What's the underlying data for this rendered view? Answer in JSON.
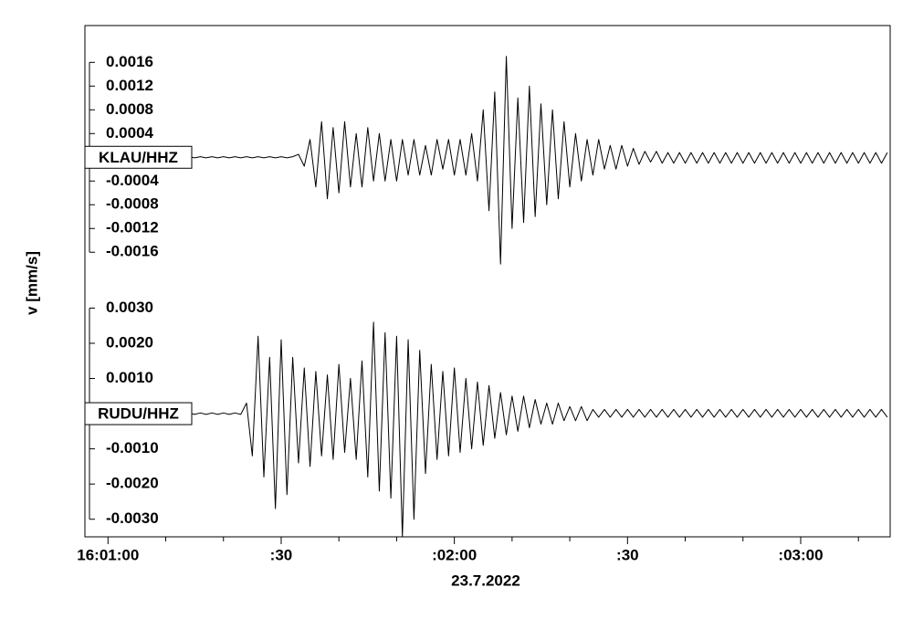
{
  "chart_data": [
    {
      "type": "line",
      "ylabel": "v [mm/s]",
      "xlim": [
        57656,
        57795.5
      ],
      "ylim": [
        -0.00215,
        0.00222
      ],
      "yticks": [
        0.0016,
        0.0012,
        0.0008,
        0.0004,
        -0.0004,
        -0.0008,
        -0.0012,
        -0.0016
      ],
      "x": [
        57656,
        57657,
        57658,
        57659,
        57660,
        57661,
        57662,
        57663,
        57664,
        57665,
        57666,
        57667,
        57668,
        57669,
        57670,
        57671,
        57672,
        57673,
        57674,
        57675,
        57676,
        57677,
        57678,
        57679,
        57680,
        57681,
        57682,
        57683,
        57684,
        57685,
        57686,
        57687,
        57688,
        57689,
        57690,
        57691,
        57692,
        57693,
        57694,
        57695,
        57696,
        57697,
        57698,
        57699,
        57700,
        57701,
        57702,
        57703,
        57704,
        57705,
        57706,
        57707,
        57708,
        57709,
        57710,
        57711,
        57712,
        57713,
        57714,
        57715,
        57716,
        57717,
        57718,
        57719,
        57720,
        57721,
        57722,
        57723,
        57724,
        57725,
        57726,
        57727,
        57728,
        57729,
        57730,
        57731,
        57732,
        57733,
        57734,
        57735,
        57736,
        57737,
        57738,
        57739,
        57740,
        57741,
        57742,
        57743,
        57744,
        57745,
        57746,
        57747,
        57748,
        57749,
        57750,
        57751,
        57752,
        57753,
        57754,
        57755,
        57756,
        57757,
        57758,
        57759,
        57760,
        57761,
        57762,
        57763,
        57764,
        57765,
        57766,
        57767,
        57768,
        57769,
        57770,
        57771,
        57772,
        57773,
        57774,
        57775,
        57776,
        57777,
        57778,
        57779,
        57780,
        57781,
        57782,
        57783,
        57784,
        57785,
        57786,
        57787,
        57788,
        57789,
        57790,
        57791,
        57792,
        57793,
        57794,
        57795
      ],
      "series": [
        {
          "name": "KLAU/HHZ",
          "color": "#000000",
          "values": [
            1e-05,
            -1e-05,
            1e-05,
            -1e-05,
            1e-05,
            -1e-05,
            1e-05,
            -1e-05,
            1e-05,
            -1e-05,
            1e-05,
            -1e-05,
            1e-05,
            -1e-05,
            1e-05,
            -1e-05,
            1e-05,
            -1e-05,
            1e-05,
            -1e-05,
            1e-05,
            -1e-05,
            1e-05,
            -1e-05,
            1e-05,
            -1e-05,
            1e-05,
            -1e-05,
            1e-05,
            -1e-05,
            1e-05,
            -1e-05,
            1e-05,
            -1e-05,
            1e-05,
            -1e-05,
            1e-05,
            5e-05,
            -0.00015,
            0.0003,
            -0.0005,
            0.0006,
            -0.0007,
            0.0005,
            -0.0006,
            0.0006,
            -0.0005,
            0.0004,
            -0.0005,
            0.0005,
            -0.0004,
            0.0004,
            -0.0004,
            0.0003,
            -0.0004,
            0.0003,
            -0.0003,
            0.0003,
            -0.0003,
            0.0002,
            -0.0003,
            0.0003,
            -0.0002,
            0.0003,
            -0.0003,
            0.0003,
            -0.0003,
            0.0004,
            -0.0004,
            0.0008,
            -0.0009,
            0.0011,
            -0.0018,
            0.0017,
            -0.0012,
            0.001,
            -0.0011,
            0.0012,
            -0.001,
            0.0009,
            -0.0008,
            0.0008,
            -0.0007,
            0.0006,
            -0.0005,
            0.0004,
            -0.0004,
            0.0003,
            -0.0003,
            0.0003,
            -0.0002,
            0.0002,
            -0.0002,
            0.0002,
            -0.00015,
            0.00015,
            -0.00012,
            0.0001,
            -8e-05,
            0.0001,
            -0.0001,
            8e-05,
            -0.0001,
            8e-05,
            -0.0001,
            8e-05,
            -0.0001,
            8e-05,
            -0.0001,
            8e-05,
            -0.0001,
            8e-05,
            -0.0001,
            8e-05,
            -0.0001,
            8e-05,
            -0.0001,
            8e-05,
            -0.0001,
            8e-05,
            -0.0001,
            8e-05,
            -0.0001,
            8e-05,
            -0.0001,
            8e-05,
            -0.0001,
            8e-05,
            -0.0001,
            8e-05,
            -0.0001,
            8e-05,
            -0.0001,
            8e-05,
            -0.0001,
            8e-05,
            -0.0001,
            8e-05,
            -0.0001,
            8e-05
          ]
        }
      ]
    },
    {
      "type": "line",
      "xlabel": "23.7.2022",
      "xlim": [
        57656,
        57795.5
      ],
      "xticks": [
        {
          "value": 57660,
          "label": "16:01:00"
        },
        {
          "value": 57690,
          "label": ":30"
        },
        {
          "value": 57720,
          "label": ":02:00"
        },
        {
          "value": 57750,
          "label": ":30"
        },
        {
          "value": 57780,
          "label": ":03:00"
        }
      ],
      "xminorticks": [
        57670,
        57680,
        57700,
        57710,
        57730,
        57740,
        57760,
        57770,
        57790
      ],
      "ylim": [
        -0.0035,
        0.00366
      ],
      "yticks": [
        {
          "value": 0.003,
          "label": "0.0030"
        },
        {
          "value": 0.002,
          "label": "0.0020"
        },
        {
          "value": 0.001,
          "label": "0.0010"
        },
        {
          "value": -0.001,
          "label": "-0.0010"
        },
        {
          "value": -0.002,
          "label": "-0.0020"
        },
        {
          "value": -0.003,
          "label": "-0.0030"
        }
      ],
      "x": [
        57656,
        57657,
        57658,
        57659,
        57660,
        57661,
        57662,
        57663,
        57664,
        57665,
        57666,
        57667,
        57668,
        57669,
        57670,
        57671,
        57672,
        57673,
        57674,
        57675,
        57676,
        57677,
        57678,
        57679,
        57680,
        57681,
        57682,
        57683,
        57684,
        57685,
        57686,
        57687,
        57688,
        57689,
        57690,
        57691,
        57692,
        57693,
        57694,
        57695,
        57696,
        57697,
        57698,
        57699,
        57700,
        57701,
        57702,
        57703,
        57704,
        57705,
        57706,
        57707,
        57708,
        57709,
        57710,
        57711,
        57712,
        57713,
        57714,
        57715,
        57716,
        57717,
        57718,
        57719,
        57720,
        57721,
        57722,
        57723,
        57724,
        57725,
        57726,
        57727,
        57728,
        57729,
        57730,
        57731,
        57732,
        57733,
        57734,
        57735,
        57736,
        57737,
        57738,
        57739,
        57740,
        57741,
        57742,
        57743,
        57744,
        57745,
        57746,
        57747,
        57748,
        57749,
        57750,
        57751,
        57752,
        57753,
        57754,
        57755,
        57756,
        57757,
        57758,
        57759,
        57760,
        57761,
        57762,
        57763,
        57764,
        57765,
        57766,
        57767,
        57768,
        57769,
        57770,
        57771,
        57772,
        57773,
        57774,
        57775,
        57776,
        57777,
        57778,
        57779,
        57780,
        57781,
        57782,
        57783,
        57784,
        57785,
        57786,
        57787,
        57788,
        57789,
        57790,
        57791,
        57792,
        57793,
        57794,
        57795
      ],
      "series": [
        {
          "name": "RUDU/HHZ",
          "color": "#000000",
          "values": [
            2e-05,
            -2e-05,
            2e-05,
            -2e-05,
            2e-05,
            -2e-05,
            2e-05,
            -2e-05,
            2e-05,
            -2e-05,
            2e-05,
            -2e-05,
            2e-05,
            -2e-05,
            2e-05,
            -2e-05,
            2e-05,
            -2e-05,
            2e-05,
            -2e-05,
            2e-05,
            -2e-05,
            2e-05,
            -2e-05,
            2e-05,
            -2e-05,
            2e-05,
            -2e-05,
            0.0003,
            -0.0012,
            0.0022,
            -0.0018,
            0.0016,
            -0.0027,
            0.0021,
            -0.0023,
            0.0016,
            -0.0014,
            0.0013,
            -0.0015,
            0.0012,
            -0.0012,
            0.0011,
            -0.0013,
            0.0014,
            -0.0011,
            0.001,
            -0.0013,
            0.0015,
            -0.0018,
            0.0026,
            -0.0022,
            0.0023,
            -0.0024,
            0.0022,
            -0.0035,
            0.0021,
            -0.003,
            0.0018,
            -0.0017,
            0.0014,
            -0.0013,
            0.0012,
            -0.0012,
            0.0013,
            -0.0011,
            0.001,
            -0.001,
            0.0009,
            -0.0009,
            0.0008,
            -0.0007,
            0.0006,
            -0.0006,
            0.0005,
            -0.0005,
            0.0005,
            -0.0004,
            0.0004,
            -0.0003,
            0.0003,
            -0.0003,
            0.0003,
            -0.0002,
            0.0002,
            -0.0002,
            0.0002,
            -0.0002,
            0.00012,
            -0.0001,
            0.00012,
            -0.0001,
            0.00012,
            -0.0001,
            0.00012,
            -0.0001,
            0.00012,
            -0.0001,
            0.00012,
            -0.0001,
            0.00012,
            -0.0001,
            0.00012,
            -0.0001,
            0.00012,
            -0.0001,
            0.00012,
            -0.0001,
            0.00012,
            -0.0001,
            0.00012,
            -0.0001,
            0.00012,
            -0.0001,
            0.00012,
            -0.0001,
            0.00012,
            -0.0001,
            0.00012,
            -0.0001,
            0.00012,
            -0.0001,
            0.00012,
            -0.0001,
            0.00012,
            -0.0001,
            0.00012,
            -0.0001,
            0.00012,
            -0.0001,
            0.00012,
            -0.0001,
            0.00012,
            -0.0001,
            0.00012,
            -0.0001,
            0.00012,
            -0.0001,
            0.00012,
            -0.0001
          ]
        }
      ]
    }
  ]
}
